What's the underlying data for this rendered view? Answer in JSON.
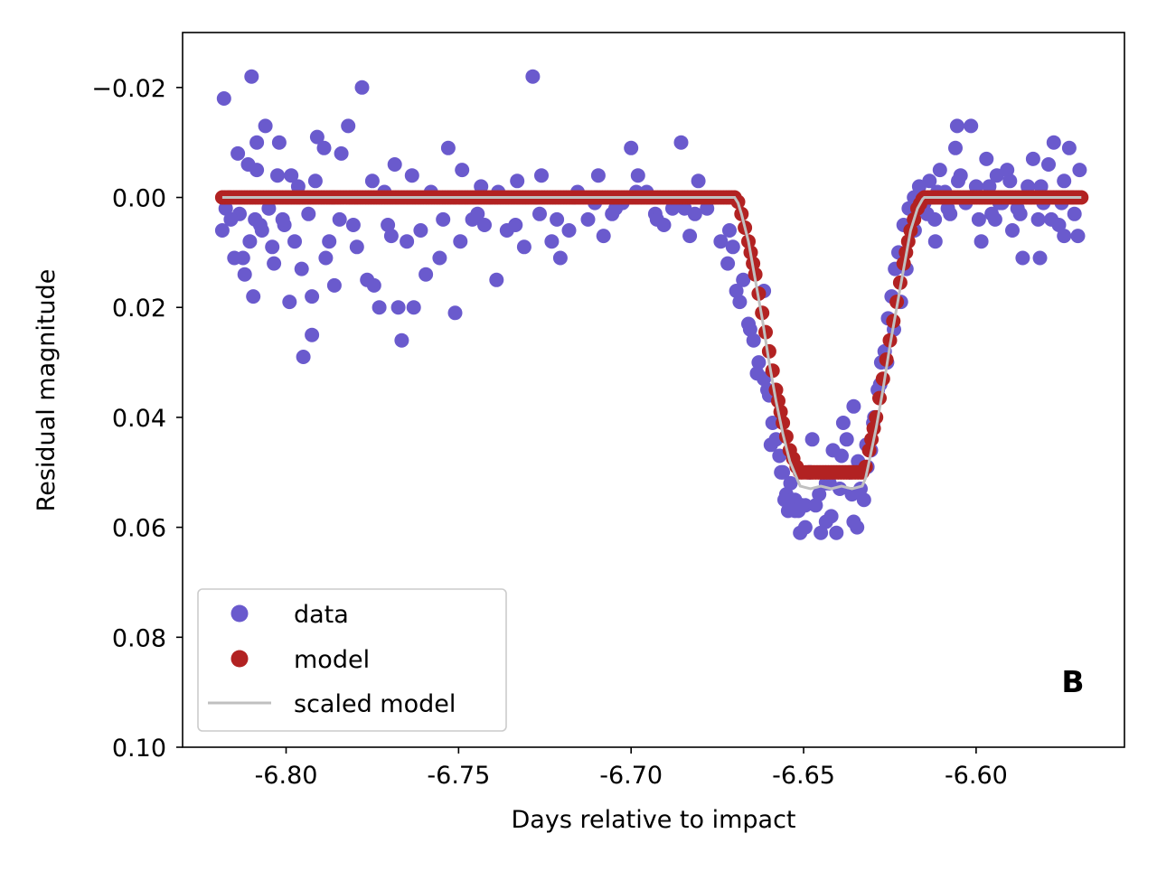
{
  "chart_data": {
    "type": "scatter",
    "xlabel": "Days relative to impact",
    "ylabel": "Residual magnitude",
    "xlim": [
      -6.83,
      -6.557
    ],
    "ylim": [
      0.1,
      -0.03
    ],
    "y_inverted": true,
    "xticks": [
      -6.8,
      -6.75,
      -6.7,
      -6.65,
      -6.6
    ],
    "xtick_labels": [
      "-6.80",
      "-6.75",
      "-6.70",
      "-6.65",
      "-6.60"
    ],
    "yticks": [
      -0.02,
      0.0,
      0.02,
      0.04,
      0.06,
      0.08,
      0.1
    ],
    "ytick_labels": [
      "−0.02",
      "0.00",
      "0.02",
      "0.04",
      "0.06",
      "0.08",
      "0.10"
    ],
    "grid": false,
    "legend_position": "bottom-left",
    "panel_label": "B",
    "colors": {
      "data": "#6a5acd",
      "model": "#b22222",
      "scaled_model": "#c0c0c0"
    },
    "series": [
      {
        "name": "data",
        "kind": "scatter",
        "x": [
          -6.8185,
          -6.818,
          -6.8165,
          -6.815,
          -6.814,
          -6.8135,
          -6.812,
          -6.811,
          -6.8105,
          -6.81,
          -6.809,
          -6.8085,
          -6.807,
          -6.806,
          -6.805,
          -6.8035,
          -6.802,
          -6.8005,
          -6.799,
          -6.7985,
          -6.7975,
          -6.7965,
          -6.795,
          -6.7935,
          -6.7925,
          -6.791,
          -6.789,
          -6.7875,
          -6.786,
          -6.784,
          -6.782,
          -6.7805,
          -6.778,
          -6.7765,
          -6.775,
          -6.773,
          -6.7705,
          -6.7685,
          -6.7665,
          -6.765,
          -6.763,
          -6.761,
          -6.758,
          -6.7555,
          -6.753,
          -6.751,
          -6.749,
          -6.746,
          -6.7435,
          -6.741,
          -6.739,
          -6.736,
          -6.733,
          -6.731,
          -6.7285,
          -6.726,
          -6.723,
          -6.7205,
          -6.718,
          -6.7155,
          -6.7125,
          -6.71,
          -6.708,
          -6.7055,
          -6.7025,
          -6.7,
          -6.698,
          -6.6955,
          -6.693,
          -6.6905,
          -6.688,
          -6.6855,
          -6.683,
          -6.6805,
          -6.678,
          -6.676,
          -6.674,
          -6.672,
          -6.6695,
          -6.6675,
          -6.666,
          -6.6645,
          -6.663,
          -6.6615,
          -6.66,
          -6.659,
          -6.658,
          -6.657,
          -6.656,
          -6.655,
          -6.6538,
          -6.6525,
          -6.6515,
          -6.651,
          -6.6495,
          -6.648,
          -6.6465,
          -6.645,
          -6.6435,
          -6.642,
          -6.6405,
          -6.639,
          -6.6375,
          -6.636,
          -6.6345,
          -6.6335,
          -6.6325,
          -6.6315,
          -6.6305,
          -6.6295,
          -6.6285,
          -6.6275,
          -6.6265,
          -6.6255,
          -6.6245,
          -6.6235,
          -6.6225,
          -6.621,
          -6.6195,
          -6.618,
          -6.6165,
          -6.615,
          -6.6135,
          -6.612,
          -6.6105,
          -6.609,
          -6.6075,
          -6.606,
          -6.6045,
          -6.603,
          -6.6015,
          -6.6,
          -6.5985,
          -6.597,
          -6.5955,
          -6.594,
          -6.5925,
          -6.591,
          -6.5895,
          -6.588,
          -6.5865,
          -6.585,
          -6.5835,
          -6.582,
          -6.5805,
          -6.579,
          -6.5775,
          -6.576,
          -6.5745,
          -6.573,
          -6.5715,
          -6.57,
          -6.5705,
          -6.8175,
          -6.816,
          -6.8125,
          -6.8095,
          -6.8075,
          -6.804,
          -6.801,
          -6.7955,
          -6.7915,
          -6.7885,
          -6.7845,
          -6.7795,
          -6.7745,
          -6.7695,
          -6.7635,
          -6.7595,
          -6.7545,
          -6.7495,
          -6.7445,
          -6.7385,
          -6.7335,
          -6.7275,
          -6.7215,
          -6.7165,
          -6.7105,
          -6.7045,
          -6.6985,
          -6.6925,
          -6.6865,
          -6.6815,
          -6.6765,
          -6.6715,
          -6.6705,
          -6.6685,
          -6.6655,
          -6.6635,
          -6.6605,
          -6.6595,
          -6.6565,
          -6.6555,
          -6.6545,
          -6.6505,
          -6.6485,
          -6.6455,
          -6.6425,
          -6.6395,
          -6.6365,
          -6.6342,
          -6.6318,
          -6.6298,
          -6.6278,
          -6.6258,
          -6.6238,
          -6.6218,
          -6.6202,
          -6.6178,
          -6.6142,
          -6.6112,
          -6.6082,
          -6.6052,
          -6.6022,
          -6.5992,
          -6.5962,
          -6.5932,
          -6.5902,
          -6.5872,
          -6.5842,
          -6.5812,
          -6.5782,
          -6.5752,
          -6.5722,
          -6.8085,
          -6.8025,
          -6.7925,
          -6.7865,
          -6.7715,
          -6.7675,
          -6.7425,
          -6.7265,
          -6.7095,
          -6.6845,
          -6.6475,
          -6.6415,
          -6.6385,
          -6.6355,
          -6.6355,
          -6.6435,
          -6.6495,
          -6.6525,
          -6.6615,
          -6.6118,
          -6.6055,
          -6.5945,
          -6.5815,
          -6.5745
        ],
        "y": [
          0.006,
          -0.018,
          0.0,
          0.011,
          -0.008,
          0.003,
          0.014,
          -0.006,
          0.008,
          -0.022,
          0.004,
          -0.005,
          0.006,
          -0.013,
          0.002,
          0.012,
          -0.01,
          0.005,
          0.019,
          -0.004,
          0.008,
          -0.002,
          0.029,
          0.003,
          0.025,
          -0.011,
          -0.009,
          0.008,
          0.016,
          -0.008,
          -0.013,
          0.005,
          -0.02,
          0.015,
          -0.003,
          0.02,
          0.005,
          -0.006,
          0.026,
          0.008,
          0.02,
          0.006,
          -0.001,
          0.011,
          -0.009,
          0.021,
          -0.005,
          0.004,
          -0.002,
          0.0,
          0.015,
          0.006,
          -0.003,
          0.009,
          -0.022,
          -0.004,
          0.008,
          0.011,
          0.006,
          -0.001,
          0.004,
          0.0,
          0.007,
          0.003,
          0.001,
          -0.009,
          -0.004,
          -0.001,
          0.003,
          0.005,
          0.002,
          -0.01,
          0.007,
          -0.003,
          0.002,
          0.0,
          0.008,
          0.012,
          0.017,
          0.015,
          0.023,
          0.026,
          0.03,
          0.033,
          0.036,
          0.041,
          0.044,
          0.047,
          0.05,
          0.054,
          0.052,
          0.055,
          0.057,
          0.061,
          0.056,
          0.05,
          0.056,
          0.061,
          0.052,
          0.058,
          0.061,
          0.047,
          0.044,
          0.054,
          0.06,
          0.053,
          0.055,
          0.049,
          0.046,
          0.04,
          0.035,
          0.03,
          0.028,
          0.022,
          0.018,
          0.013,
          0.01,
          0.005,
          0.002,
          0.0,
          -0.002,
          0.001,
          -0.003,
          0.004,
          -0.005,
          -0.001,
          0.003,
          -0.009,
          -0.004,
          0.001,
          -0.013,
          -0.002,
          0.008,
          -0.007,
          0.003,
          -0.004,
          0.001,
          -0.005,
          0.006,
          0.002,
          0.011,
          -0.002,
          -0.007,
          0.004,
          0.001,
          -0.006,
          -0.01,
          0.005,
          -0.003,
          -0.009,
          0.003,
          -0.005,
          0.007,
          0.002,
          0.004,
          0.011,
          0.018,
          0.005,
          0.009,
          0.004,
          0.013,
          -0.003,
          0.011,
          0.004,
          0.009,
          0.016,
          0.007,
          -0.004,
          0.014,
          0.004,
          0.008,
          0.003,
          -0.001,
          0.005,
          0.0,
          0.004,
          0.0,
          0.001,
          0.002,
          -0.001,
          0.004,
          0.001,
          0.003,
          0.0,
          0.006,
          0.009,
          0.019,
          0.024,
          0.032,
          0.035,
          0.045,
          0.05,
          0.055,
          0.057,
          0.056,
          0.05,
          0.054,
          0.052,
          0.053,
          0.05,
          0.048,
          0.045,
          0.041,
          0.034,
          0.03,
          0.024,
          0.019,
          0.013,
          0.006,
          0.003,
          -0.001,
          0.002,
          -0.003,
          0.0,
          0.004,
          -0.002,
          0.001,
          -0.003,
          0.003,
          0.0,
          -0.002,
          0.004,
          0.001,
          0.0,
          -0.01,
          -0.004,
          0.018,
          0.0,
          -0.001,
          0.02,
          0.005,
          0.003,
          -0.004,
          0.002,
          0.044,
          0.046,
          0.041,
          0.038,
          0.059,
          0.059,
          0.06,
          0.057,
          0.017,
          0.008,
          -0.013,
          0.004,
          0.011,
          0.007
        ]
      },
      {
        "name": "model",
        "kind": "dense-points",
        "x": [
          -6.8185,
          -6.67,
          -6.669,
          -6.668,
          -6.666,
          -6.664,
          -6.662,
          -6.66,
          -6.658,
          -6.656,
          -6.654,
          -6.652,
          -6.651,
          -6.633,
          -6.632,
          -6.631,
          -6.629,
          -6.627,
          -6.625,
          -6.623,
          -6.621,
          -6.619,
          -6.617,
          -6.6155,
          -6.615,
          -6.5695
        ],
        "y": [
          0.0,
          0.0,
          0.0008,
          0.003,
          0.008,
          0.014,
          0.021,
          0.028,
          0.035,
          0.041,
          0.046,
          0.049,
          0.05,
          0.05,
          0.049,
          0.046,
          0.04,
          0.033,
          0.026,
          0.019,
          0.012,
          0.006,
          0.002,
          0.0003,
          0.0,
          0.0
        ]
      },
      {
        "name": "scaled model",
        "kind": "line",
        "x": [
          -6.8185,
          -6.67,
          -6.669,
          -6.668,
          -6.666,
          -6.664,
          -6.662,
          -6.66,
          -6.658,
          -6.656,
          -6.654,
          -6.652,
          -6.651,
          -6.648,
          -6.645,
          -6.642,
          -6.639,
          -6.636,
          -6.633,
          -6.632,
          -6.631,
          -6.629,
          -6.627,
          -6.625,
          -6.623,
          -6.621,
          -6.619,
          -6.617,
          -6.6155,
          -6.615,
          -6.5695
        ],
        "y": [
          0.0,
          0.0,
          0.001,
          0.003,
          0.008,
          0.015,
          0.022,
          0.03,
          0.037,
          0.043,
          0.048,
          0.051,
          0.0525,
          0.053,
          0.0525,
          0.053,
          0.0525,
          0.053,
          0.0525,
          0.051,
          0.048,
          0.042,
          0.035,
          0.027,
          0.02,
          0.013,
          0.006,
          0.002,
          0.0003,
          0.0,
          0.0
        ]
      }
    ]
  }
}
